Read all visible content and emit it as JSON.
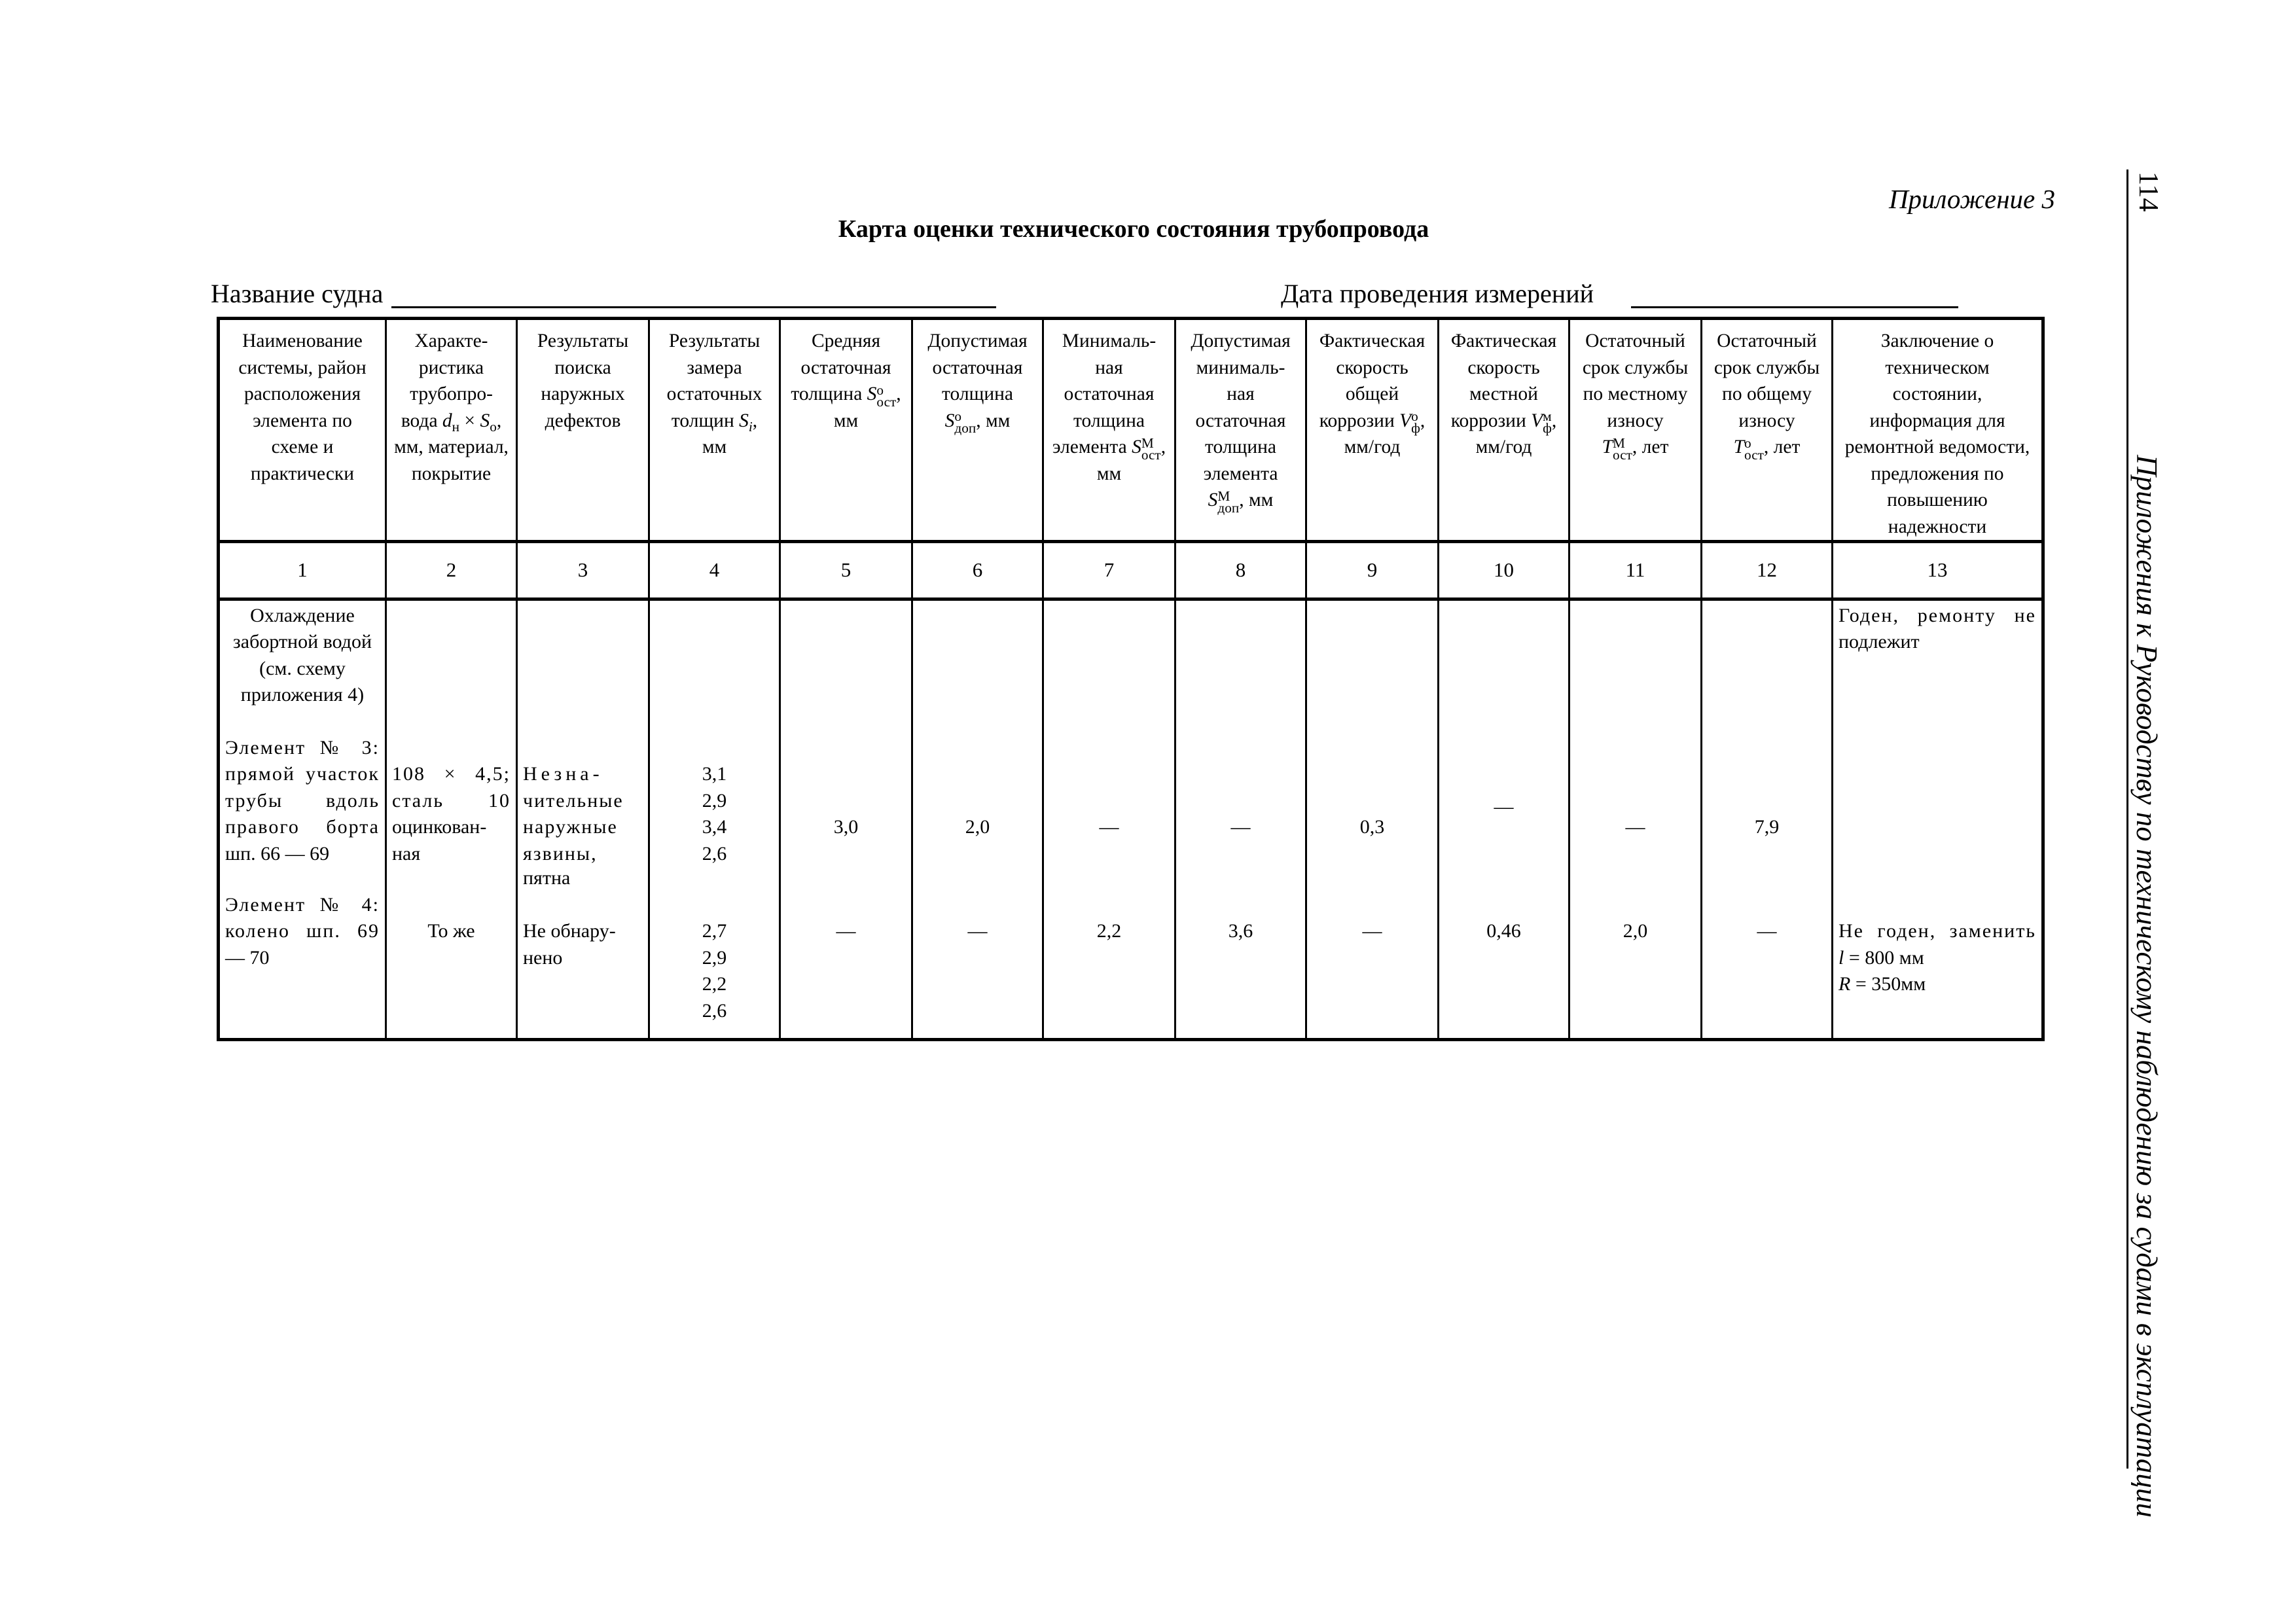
{
  "page": {
    "appendix": "Приложение 3",
    "title": "Карта оценки технического состояния трубопровода",
    "page_number": "114",
    "running_title": "Приложения к Руководству по техническому наблюдению за судами в эксплуатации"
  },
  "fields": {
    "vessel_name_label": "Название судна",
    "vessel_name_value": "",
    "date_label": "Дата проведения измерений",
    "date_value": ""
  },
  "header": {
    "c1": "Наименование\nсистемы, район\nрасположения\nэлемента по\nсхеме и\nпрактически",
    "c2": {
      "pre": "Характе-\nристика\nтрубопро-\nвода ",
      "sym1": "d",
      "sub1": "н",
      "mid": " × ",
      "sym2": "S",
      "sub2": "о",
      "post": ",\nмм, материал,\nпокрытие"
    },
    "c3": "Результаты\nпоиска\nнаружных\nдефектов",
    "c4": {
      "pre": "Результаты\nзамера\nостаточных\nтолщин ",
      "sym": "S",
      "sub": "i",
      "post": ",\nмм"
    },
    "c5": {
      "pre": "Средняя\nостаточная\nтолщина ",
      "sym": "S",
      "sup": "о",
      "sub": "ост",
      "post": ",\nмм"
    },
    "c6": {
      "pre": "Допустимая\nостаточная\nтолщина\n",
      "sym": "S",
      "sup": "о",
      "sub": "доп",
      "post": ", мм"
    },
    "c7": {
      "pre": "Минималь-\nная\nостаточная\nтолщина\nэлемента ",
      "sym": "S",
      "sup": "М",
      "sub": "ост",
      "post": ",\nмм"
    },
    "c8": {
      "pre": "Допустимая\nминималь-\nная\nостаточная\nтолщина\nэлемента\n",
      "sym": "S",
      "sup": "М",
      "sub": "доп",
      "post": ",  мм"
    },
    "c9": {
      "pre": "Фактическая\nскорость\nобщей\nкоррозии ",
      "sym": "V",
      "sup": "о",
      "sub": "ф",
      "post": ",\nмм/год"
    },
    "c10": {
      "pre": "Фактическая\nскорость\nместной\nкоррозии ",
      "sym": "V",
      "sup": "м",
      "sub": "ф",
      "post": ",\nмм/год"
    },
    "c11": {
      "pre": "Остаточный\nсрок службы\nпо местному\nизносу\n",
      "sym": "T",
      "sup": "М",
      "sub": "ост",
      "post": ", лет"
    },
    "c12": {
      "pre": "Остаточный\nсрок службы\nпо общему\nизносу\n",
      "sym": "T",
      "sup": "о",
      "sub": "ост",
      "post": ", лет"
    },
    "c13": "Заключение о\nтехническом\nсостоянии,\nинформация для\nремонтной ведомости,\nпредложения по\nповышению\nнадежности"
  },
  "column_numbers": [
    "1",
    "2",
    "3",
    "4",
    "5",
    "6",
    "7",
    "8",
    "9",
    "10",
    "11",
    "12",
    "13"
  ],
  "system": {
    "lines": [
      "Охлаждение",
      "забортной водой",
      "(см. схему",
      "приложения 4)"
    ]
  },
  "element3": {
    "name": [
      "Элемент № 3:",
      "прямой участок",
      "трубы вдоль",
      "правого борта",
      "шп. 66 — 69"
    ],
    "pipe": [
      "108 × 4,5;",
      "сталь 10",
      "оцинкован-",
      "ная"
    ],
    "defects": [
      "Незна-",
      "чительные",
      "наружные",
      "язвины,",
      "пятна"
    ],
    "measurements": [
      "3,1",
      "2,9",
      "3,4",
      "2,6"
    ],
    "avg_thickness": "3,0",
    "allowed_thickness": "2,0",
    "min_thickness": "—",
    "allowed_min_thickness": "—",
    "general_corrosion_rate": "0,3",
    "local_corrosion_rate": "—",
    "life_local": "—",
    "life_general": "7,9",
    "conclusion": [
      "Годен, ремонту не",
      "подлежит"
    ]
  },
  "element4": {
    "name": [
      "Элемент № 4:",
      "колено шп. 69",
      "— 70"
    ],
    "pipe": [
      "То же"
    ],
    "defects": [
      "Не обнару-",
      "нено"
    ],
    "measurements": [
      "2,7",
      "2,9",
      "2,2",
      "2,6"
    ],
    "avg_thickness": "—",
    "allowed_thickness": "—",
    "min_thickness": "2,2",
    "allowed_min_thickness": "3,6",
    "general_corrosion_rate": "—",
    "local_corrosion_rate": "0,46",
    "life_local": "2,0",
    "life_general": "—",
    "conclusion": [
      "Не годен, заменить"
    ],
    "length": {
      "sym": "l",
      "value": " = 800 мм"
    },
    "radius": {
      "sym": "R",
      "value": " = 350мм"
    }
  }
}
